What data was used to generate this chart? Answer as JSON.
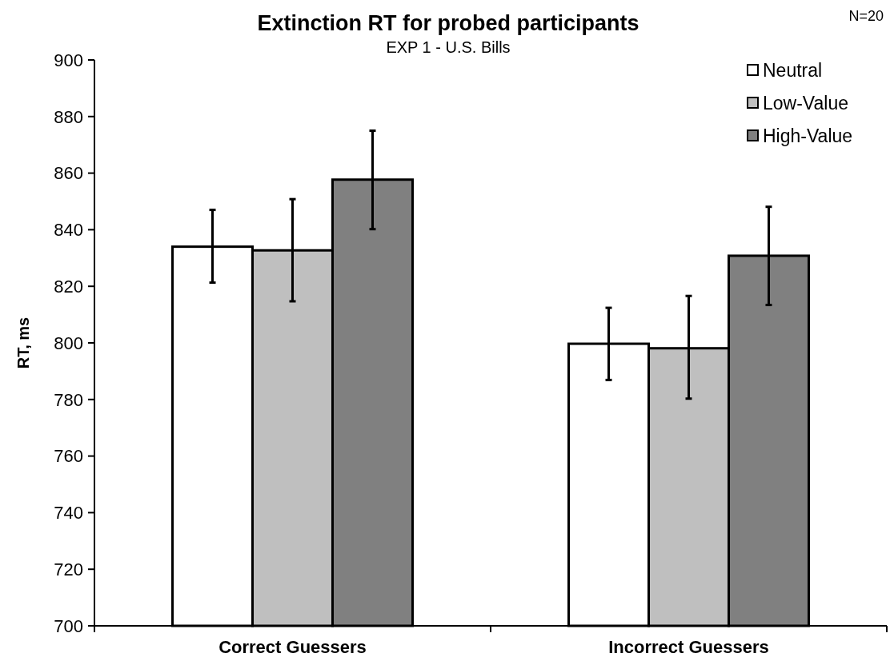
{
  "chart_data": {
    "type": "bar",
    "title": "Extinction RT for probed participants",
    "subtitle": "EXP 1 - U.S. Bills",
    "ylabel": "RT, ms",
    "annotations": [
      "N=20"
    ],
    "categories": [
      "Correct Guessers",
      "Incorrect Guessers"
    ],
    "series": [
      {
        "name": "Neutral",
        "color": "#ffffff",
        "values": [
          834,
          799.7
        ],
        "errors": [
          [
            821.3,
            847
          ],
          [
            786.9,
            812.4
          ]
        ]
      },
      {
        "name": "Low-Value",
        "color": "#bfbfbf",
        "values": [
          832.7,
          798.1
        ],
        "errors": [
          [
            814.7,
            850.8
          ],
          [
            780.3,
            816.6
          ]
        ]
      },
      {
        "name": "High-Value",
        "color": "#808080",
        "values": [
          857.7,
          830.8
        ],
        "errors": [
          [
            840.2,
            875
          ],
          [
            813.4,
            848.1
          ]
        ]
      }
    ],
    "ylim": [
      700,
      900
    ],
    "yticks": [
      700,
      720,
      740,
      760,
      780,
      800,
      820,
      840,
      860,
      880,
      900
    ],
    "grid": false,
    "legend": "top right"
  }
}
